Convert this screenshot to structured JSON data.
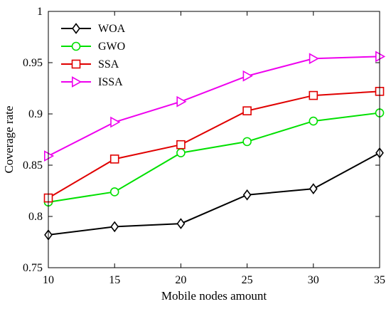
{
  "chart_data": {
    "type": "line",
    "title": "",
    "xlabel": "Mobile nodes amount",
    "ylabel": "Coverage rate",
    "x": [
      10,
      15,
      20,
      25,
      30,
      35
    ],
    "xlim": [
      10,
      35
    ],
    "ylim": [
      0.75,
      1
    ],
    "xticks": [
      10,
      15,
      20,
      25,
      30,
      35
    ],
    "yticks": [
      0.75,
      0.8,
      0.85,
      0.9,
      0.95,
      1
    ],
    "ytick_labels": [
      "0.75",
      "0.8",
      "0.85",
      "0.9",
      "0.95",
      "1"
    ],
    "grid": false,
    "legend_position": "top-left",
    "series": [
      {
        "name": "WOA",
        "color": "#000000",
        "marker": "diamond",
        "values": [
          0.782,
          0.79,
          0.793,
          0.821,
          0.827,
          0.862
        ]
      },
      {
        "name": "GWO",
        "color": "#00e000",
        "marker": "circle",
        "values": [
          0.814,
          0.824,
          0.862,
          0.873,
          0.893,
          0.901
        ]
      },
      {
        "name": "SSA",
        "color": "#e00000",
        "marker": "square",
        "values": [
          0.818,
          0.856,
          0.87,
          0.903,
          0.918,
          0.922
        ]
      },
      {
        "name": "ISSA",
        "color": "#ee00ee",
        "marker": "triangle-right",
        "values": [
          0.859,
          0.892,
          0.912,
          0.937,
          0.954,
          0.956
        ]
      }
    ]
  }
}
